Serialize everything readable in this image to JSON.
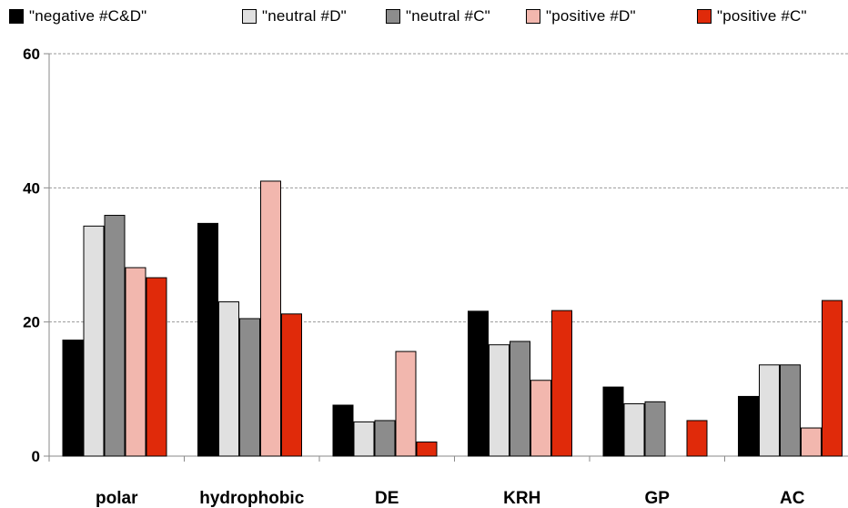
{
  "chart_data": {
    "type": "bar",
    "categories": [
      "polar",
      "hydrophobic",
      "DE",
      "KRH",
      "GP",
      "AC"
    ],
    "series": [
      {
        "name": "\"negative #C&D\"",
        "color": "#000000",
        "values": [
          17.3,
          34.7,
          7.6,
          21.6,
          10.3,
          8.9
        ]
      },
      {
        "name": "\"neutral #D\"",
        "color": "#e0e0e0",
        "values": [
          34.3,
          23.0,
          5.1,
          16.6,
          7.8,
          13.6
        ]
      },
      {
        "name": "\"neutral #C\"",
        "color": "#8c8c8c",
        "values": [
          35.9,
          20.5,
          5.3,
          17.1,
          8.1,
          13.6
        ]
      },
      {
        "name": "\"positive #D\"",
        "color": "#f2b7ae",
        "values": [
          28.1,
          41.0,
          15.6,
          11.3,
          0,
          4.2
        ]
      },
      {
        "name": "\"positive #C\"",
        "color": "#e02a0a",
        "values": [
          26.6,
          21.2,
          2.1,
          21.7,
          5.3,
          23.2
        ]
      }
    ],
    "ylim": [
      0,
      60
    ],
    "yticks": [
      "0",
      "20",
      "40",
      "60"
    ],
    "grid": true,
    "legend_position": "top"
  }
}
